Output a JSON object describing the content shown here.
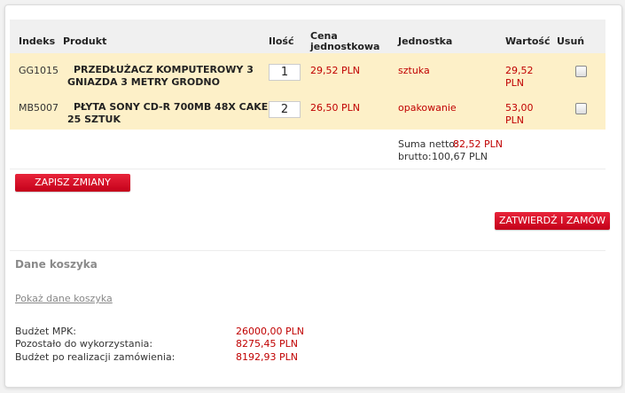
{
  "table": {
    "headers": {
      "index": "Indeks",
      "product": "Produkt",
      "qty": "Ilość",
      "unit_price_line1": "Cena",
      "unit_price_line2": "jednostkowa",
      "unit": "Jednostka",
      "value": "Wartość",
      "remove": "Usuń"
    },
    "rows": [
      {
        "index": "GG1015",
        "product_line1": "PRZEDŁUŻACZ KOMPUTEROWY 3",
        "product_line2": "GNIAZDA 3 METRY GRODNO",
        "qty": "1",
        "unit_price": "29,52 PLN",
        "unit": "sztuka",
        "value_line1": "29,52",
        "value_line2": "PLN",
        "remove_checked": false
      },
      {
        "index": "MB5007",
        "product_line1": "PŁYTA SONY CD-R 700MB 48X CAKE",
        "product_line2": "25 SZTUK",
        "qty": "2",
        "unit_price": "26,50 PLN",
        "unit": "opakowanie",
        "value_line1": "53,00",
        "value_line2": "PLN",
        "remove_checked": false
      }
    ],
    "totals": {
      "net_label": "Suma netto:",
      "net_value": "82,52 PLN",
      "gross_label": "brutto:",
      "gross_value": "100,67 PLN"
    }
  },
  "buttons": {
    "save": "ZAPISZ ZMIANY",
    "confirm": "ZATWIERDŹ I ZAMÓW"
  },
  "cart": {
    "title": "Dane koszyka",
    "show_link": "Pokaż dane koszyka"
  },
  "budget": {
    "mpk_label": "Budżet MPK:",
    "mpk_value": "26000,00 PLN",
    "remaining_label": "Pozostało do wykorzystania:",
    "remaining_value": "8275,45 PLN",
    "after_label": "Budżet po realizacji zamówienia:",
    "after_value": "8192,93 PLN"
  },
  "colors": {
    "accent": "#c00000",
    "row_bg": "#fdf0c8",
    "button": "#d8102a"
  }
}
